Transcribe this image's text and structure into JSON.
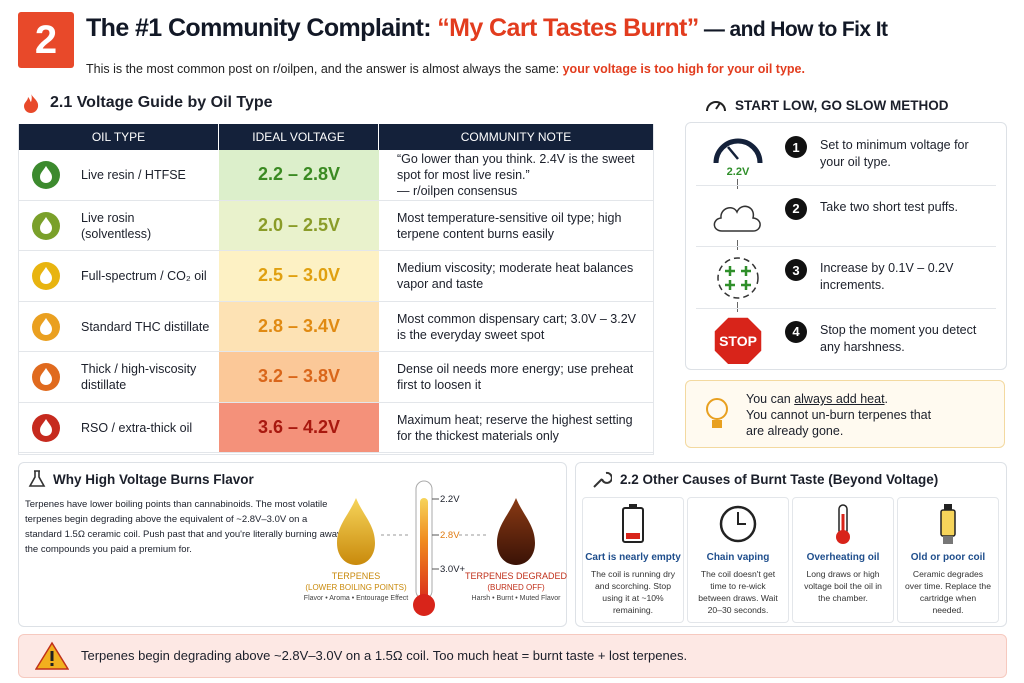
{
  "header": {
    "number": "2",
    "title_pre": "The #1 Community Complaint: ",
    "title_quote": "“My Cart Tastes Burnt”",
    "title_post": " — and How to Fix It",
    "subtitle": "This is the most common post on r/oilpen, and the answer is almost always the same: ",
    "subtitle_emph": "your voltage is too high for your oil type."
  },
  "voltage_guide": {
    "heading": "2.1 Voltage Guide by Oil Type",
    "columns": [
      "OIL TYPE",
      "IDEAL VOLTAGE",
      "COMMUNITY NOTE"
    ],
    "rows": [
      [
        "Live resin / HTFSE",
        "2.2 – 2.8V",
        "“Go lower than you think. 2.4V is the sweet spot for most live resin.”\n— r/oilpen consensus"
      ],
      [
        "Live rosin\n(solventless)",
        "2.0 – 2.5V",
        "Most temperature-sensitive oil type; high terpene content burns easily"
      ],
      [
        "Full-spectrum / CO₂ oil",
        "2.5 – 3.0V",
        "Medium viscosity; moderate heat balances vapor and taste"
      ],
      [
        "Standard THC distillate",
        "2.8 – 3.4V",
        "Most common dispensary cart; 3.0V – 3.2V is the everyday sweet spot"
      ],
      [
        "Thick / high-viscosity\ndistillate",
        "3.2 – 3.8V",
        "Dense oil needs more energy; use preheat first to loosen it"
      ],
      [
        "RSO / extra-thick oil",
        "3.6 – 4.2V",
        "Maximum heat; reserve the highest setting for the thickest materials only"
      ]
    ]
  },
  "method": {
    "heading": "START LOW, GO SLOW METHOD",
    "gauge_label": "2.2V",
    "stop_label": "STOP",
    "steps": [
      {
        "number": "1",
        "text": "Set to minimum voltage for your oil type."
      },
      {
        "number": "2",
        "text": "Take two short test puffs."
      },
      {
        "number": "3",
        "text": "Increase by 0.1V – 0.2V increments."
      },
      {
        "number": "4",
        "text": "Stop the moment you detect any harshness."
      }
    ]
  },
  "tip": {
    "line1_pre": "You can ",
    "line1_emph": "always add heat",
    "line1_post": ".",
    "line2": "You cannot un-burn terpenes that are already gone."
  },
  "why": {
    "heading": "Why High Voltage Burns Flavor",
    "body": "Terpenes have lower boiling points than cannabinoids. The most volatile terpenes begin degrading above the equivalent of ~2.8V–3.0V on a standard 1.5Ω ceramic coil. Push past that and you're literally burning away the compounds you paid a premium for.",
    "thermo_labels": [
      "2.2V",
      "2.8V",
      "3.0V+"
    ],
    "fresh": {
      "title": "TERPENES",
      "subtitle": "(LOWER BOILING POINTS)",
      "traits": "Flavor • Aroma • Entourage Effect"
    },
    "degraded": {
      "title": "TERPENES DEGRADED",
      "subtitle": "(BURNED OFF)",
      "traits": "Harsh • Burnt • Muted Flavor"
    }
  },
  "causes": {
    "heading": "2.2 Other Causes of Burnt Taste (Beyond Voltage)",
    "cards": [
      {
        "title": "Cart is nearly empty",
        "body": "The coil is running dry and scorching. Stop using it at ~10% remaining."
      },
      {
        "title": "Chain vaping",
        "body": "The coil doesn't get time to re-wick between draws. Wait 20–30 seconds."
      },
      {
        "title": "Overheating oil",
        "body": "Long draws or high voltage boil the oil in the chamber."
      },
      {
        "title": "Old or poor coil",
        "body": "Ceramic degrades over time. Replace the cartridge when needed."
      }
    ]
  },
  "footer": {
    "text": "Terpenes begin degrading above ~2.8V–3.0V on a 1.5Ω coil. Too much heat = burnt taste + lost terpenes."
  }
}
